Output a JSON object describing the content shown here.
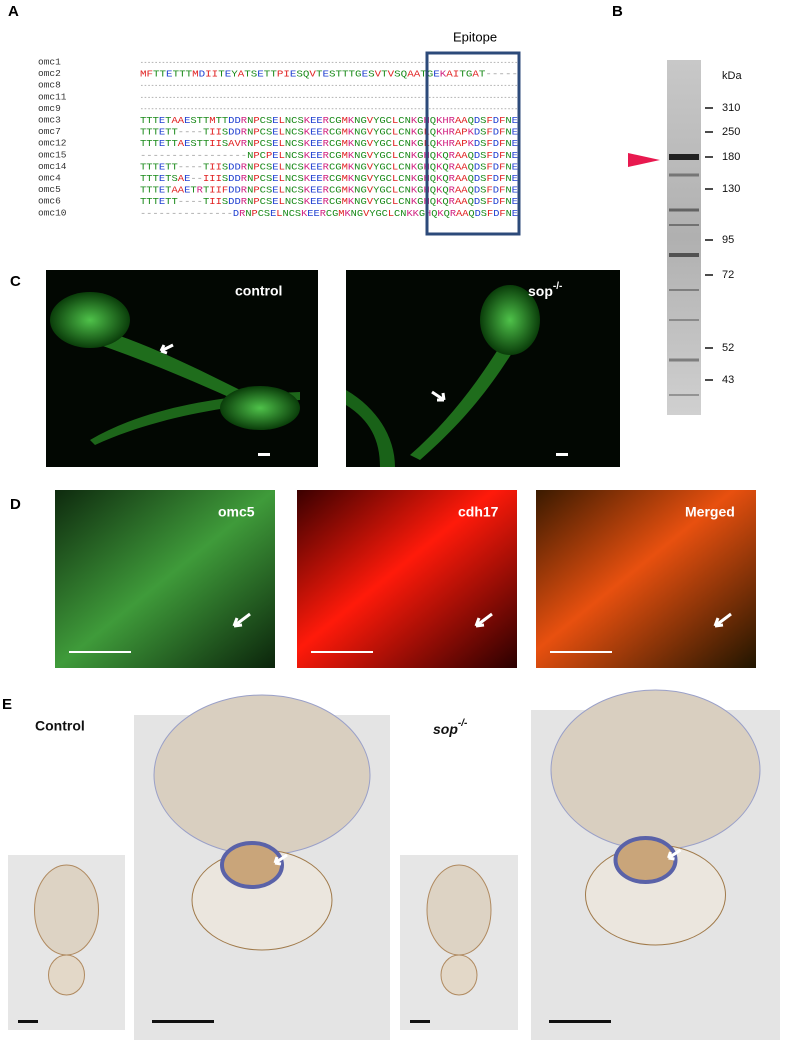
{
  "panel_a": {
    "label": "A",
    "epitope": "Epitope",
    "names": [
      "omc1",
      "omc2",
      "omc8",
      "omc11",
      "omc9",
      "omc3",
      "omc7",
      "omc12",
      "omc15",
      "omc14",
      "omc4",
      "omc5",
      "omc6",
      "omc10"
    ],
    "sequences": [
      "---------------------------------------------------------------------------------------------------------",
      "MFTTETTTMDIITEYATSETTPIESQVTESTTTGESVTVSQAATGEKAITGAT-----",
      "---------------------------------------------------------------------------------------------------------",
      "---------------------------------------------------------------------------------------------------------",
      "---------------------------------------------------------------------------------------------------------",
      "TTTETAAESTTMTTDDRNPCSELNCSKEERCGMKNGVYGCLCNKGHQKHRAAQDSFDFNE",
      "TTTETT----TIISDDRNPCSELNCSKEERCGMKNGVYGCLCNKGLQKHRAPKDSFDFNE",
      "TTTETTAESTTIISAVRNPCSELNCSKEERCGMKNGVYGCLCNKGLQKHRAPKDSFDFNE",
      "-----------------NPCPELNCSKEERCGMKNGVYGCLCNKGHQKQRAAQDSFDFNE",
      "TTTETT----TIISDDRNPCSELNCSKEERCGMKNGVYGCLCNKGHQKQRAAQDSFDFNE",
      "TTTETSAE--IIISDDRNPCSELNCSKEERCGMKNGVYGCLCNKGHQKQRAAQDSFDFNE",
      "TTTETAAETRTIIFDDRNPCSELNCSKEERCGMKNGVYGCLCNKGHQKQRAAQDSFDFNE",
      "TTTETT----TIISDDRNPCSELNCSKEERCGMKNGVYGCLCNKGHQKQRAAQDSFDFNE",
      "---------------DRNPCSELNCSKEERCGMKNGVYGCLCNKKGHQKQRAAQDSFDFNE"
    ]
  },
  "panel_b": {
    "label": "B",
    "unit": "kDa",
    "markers": [
      "310",
      "250",
      "180",
      "130",
      "95",
      "72",
      "52",
      "43"
    ]
  },
  "panel_c": {
    "label": "C",
    "left": "control",
    "right": "sop",
    "right_sup": "-/-"
  },
  "panel_d": {
    "label": "D",
    "images": [
      "omc5",
      "cdh17",
      "Merged"
    ]
  },
  "panel_e": {
    "label": "E",
    "left": "Control",
    "right": "sop",
    "right_sup": "-/-"
  }
}
